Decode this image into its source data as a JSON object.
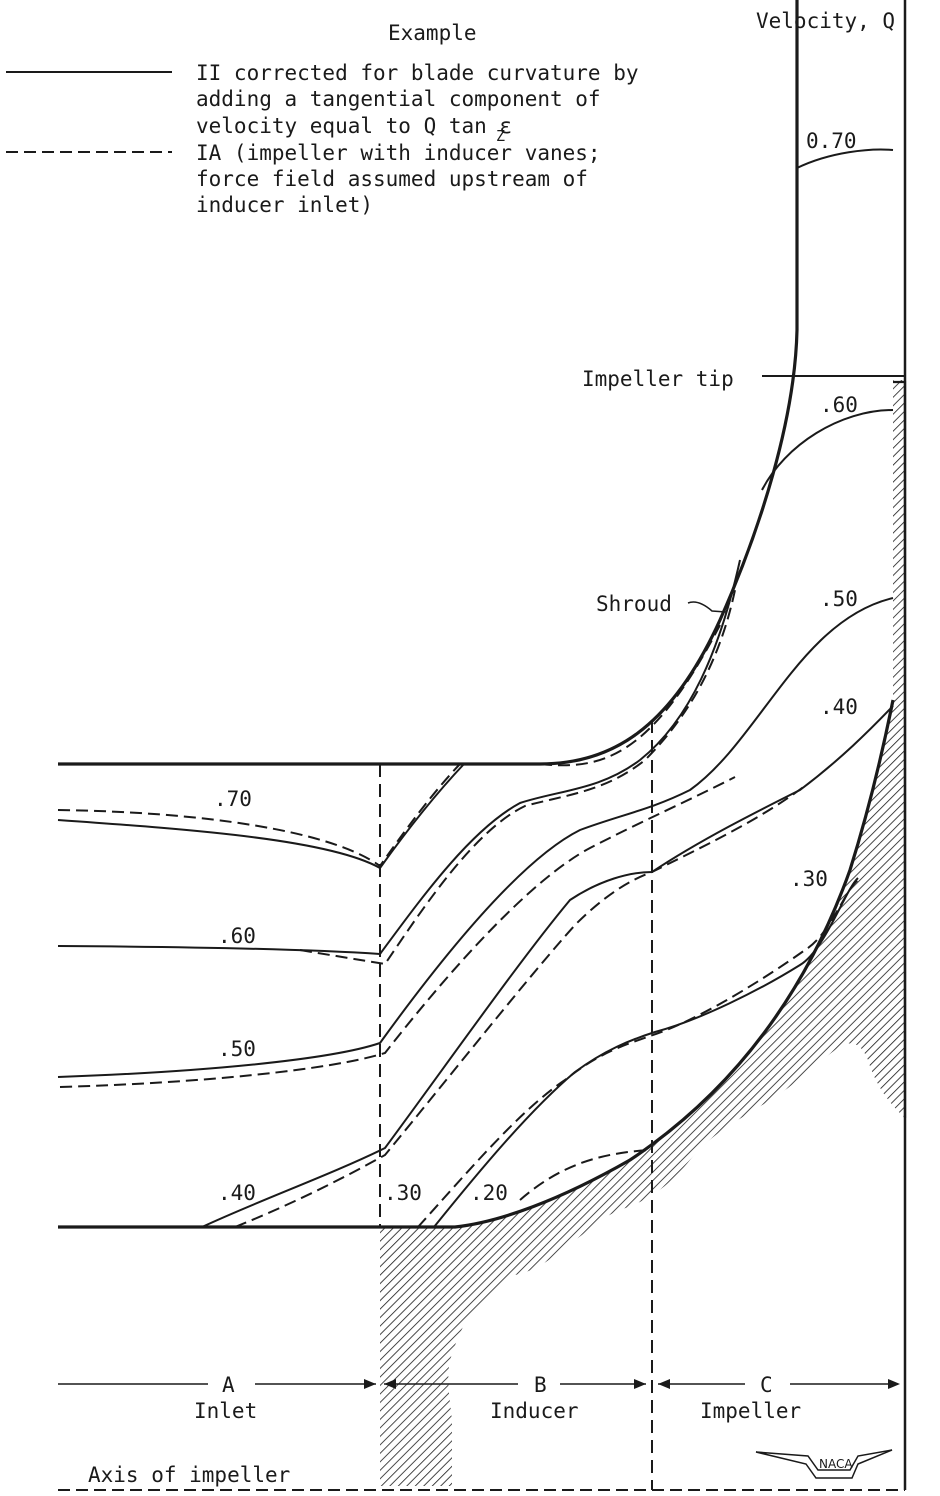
{
  "header": {
    "legend_title": "Example",
    "velocity_title": "Velocity, Q"
  },
  "legend": [
    {
      "style": "solid",
      "lines": [
        "II corrected for blade curvature by",
        "adding a tangential component of",
        "velocity equal to  Q tan ε"
      ],
      "subscript": "Z"
    },
    {
      "style": "dashed",
      "lines": [
        "IA (impeller with inducer vanes;",
        "force field assumed upstream of",
        "inducer inlet)"
      ]
    }
  ],
  "annotations": {
    "impeller_tip": "Impeller tip",
    "shroud": "Shroud"
  },
  "contour_labels": {
    "c070_top": "0.70",
    "c060_right": ".60",
    "c050_right": ".50",
    "c040_right": ".40",
    "c030_right": ".30",
    "c070_left": ".70",
    "c060_left": ".60",
    "c050_left": ".50",
    "c040_left": ".40",
    "c030_bottom": ".30",
    "c020_bottom": ".20"
  },
  "sections": {
    "a_letter": "A",
    "a_name": "Inlet",
    "b_letter": "B",
    "b_name": "Inducer",
    "c_letter": "C",
    "c_name": "Impeller"
  },
  "axis_label": "Axis of impeller",
  "logo_text": "NACA",
  "colors": {
    "ink": "#1a1a1a",
    "paper": "#ffffff"
  }
}
